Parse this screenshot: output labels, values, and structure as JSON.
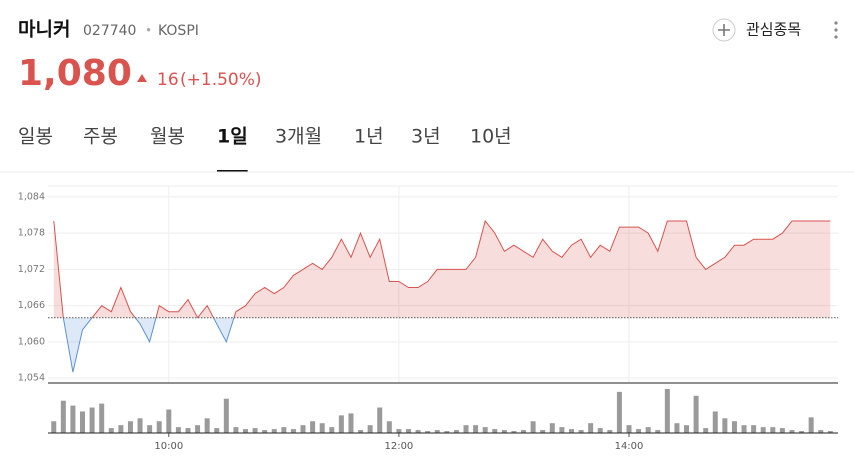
{
  "header": {
    "name": "마니커",
    "code": "027740",
    "separator": "•",
    "market": "KOSPI",
    "watch_label": "관심종목"
  },
  "price": {
    "value": "1,080",
    "change": "16",
    "change_pct": "(+1.50%)"
  },
  "tabs": [
    "일봉",
    "주봉",
    "월봉",
    "1일",
    "3개월",
    "1년",
    "3년",
    "10년"
  ],
  "selected_tab": 3,
  "chart_data": {
    "type": "line",
    "x": [
      540,
      545,
      550,
      555,
      560,
      565,
      570,
      575,
      580,
      585,
      590,
      595,
      600,
      605,
      610,
      615,
      620,
      625,
      630,
      635,
      640,
      645,
      650,
      655,
      660,
      665,
      670,
      675,
      680,
      685,
      690,
      695,
      700,
      705,
      710,
      715,
      720,
      725,
      730,
      735,
      740,
      745,
      750,
      755,
      760,
      765,
      770,
      775,
      780,
      785,
      790,
      795,
      800,
      805,
      810,
      815,
      820,
      825,
      830,
      835,
      840,
      845,
      850,
      855,
      860,
      865,
      870,
      875,
      880,
      885,
      890,
      895,
      900,
      905,
      910,
      915,
      920,
      925,
      930,
      935,
      940,
      945
    ],
    "series": [
      {
        "color": "#d9534f",
        "color_below": "#5b8fd6",
        "values": [
          1080,
          1064,
          1055,
          1062,
          1064,
          1066,
          1065,
          1069,
          1065,
          1063,
          1060,
          1066,
          1065,
          1065,
          1067,
          1064,
          1066,
          1063,
          1060,
          1065,
          1066,
          1068,
          1069,
          1068,
          1069,
          1071,
          1072,
          1073,
          1072,
          1074,
          1077,
          1074,
          1078,
          1074,
          1077,
          1070,
          1070,
          1069,
          1069,
          1070,
          1072,
          1072,
          1072,
          1072,
          1074,
          1080,
          1078,
          1075,
          1076,
          1075,
          1074,
          1077,
          1075,
          1074,
          1076,
          1077,
          1074,
          1076,
          1075,
          1079,
          1079,
          1079,
          1078,
          1075,
          1080,
          1080,
          1080,
          1074,
          1072,
          1073,
          1074,
          1076,
          1076,
          1077,
          1077,
          1077,
          1078,
          1080,
          1080,
          1080,
          1080,
          1080
        ]
      }
    ],
    "baseline": 1064,
    "xlim": [
      537,
      949
    ],
    "ylim": [
      1053.2,
      1085.8
    ],
    "yticks": [
      {
        "value": 1084,
        "label": "1,084"
      },
      {
        "value": 1078,
        "label": "1,078"
      },
      {
        "value": 1072,
        "label": "1,072"
      },
      {
        "value": 1066,
        "label": "1,066"
      },
      {
        "value": 1060,
        "label": "1,060"
      },
      {
        "value": 1054,
        "label": "1,054"
      }
    ],
    "xticks": [
      {
        "value": 600,
        "label": "10:00"
      },
      {
        "value": 720,
        "label": "12:00"
      },
      {
        "value": 840,
        "label": "14:00"
      }
    ],
    "volume": {
      "color": "#9a9a9a",
      "ylim": [
        0,
        48
      ],
      "values": [
        12,
        33,
        28,
        22,
        26,
        30,
        5,
        8,
        12,
        15,
        8,
        12,
        24,
        6,
        5,
        8,
        15,
        5,
        35,
        6,
        4,
        5,
        3,
        4,
        6,
        4,
        8,
        12,
        10,
        6,
        18,
        20,
        3,
        8,
        26,
        12,
        4,
        4,
        3,
        2,
        3,
        2,
        3,
        8,
        8,
        6,
        4,
        3,
        2,
        3,
        12,
        3,
        10,
        6,
        4,
        3,
        10,
        5,
        3,
        42,
        8,
        4,
        6,
        3,
        45,
        10,
        8,
        38,
        5,
        22,
        15,
        12,
        8,
        8,
        6,
        6,
        5,
        3,
        2,
        16,
        3,
        2
      ]
    }
  }
}
